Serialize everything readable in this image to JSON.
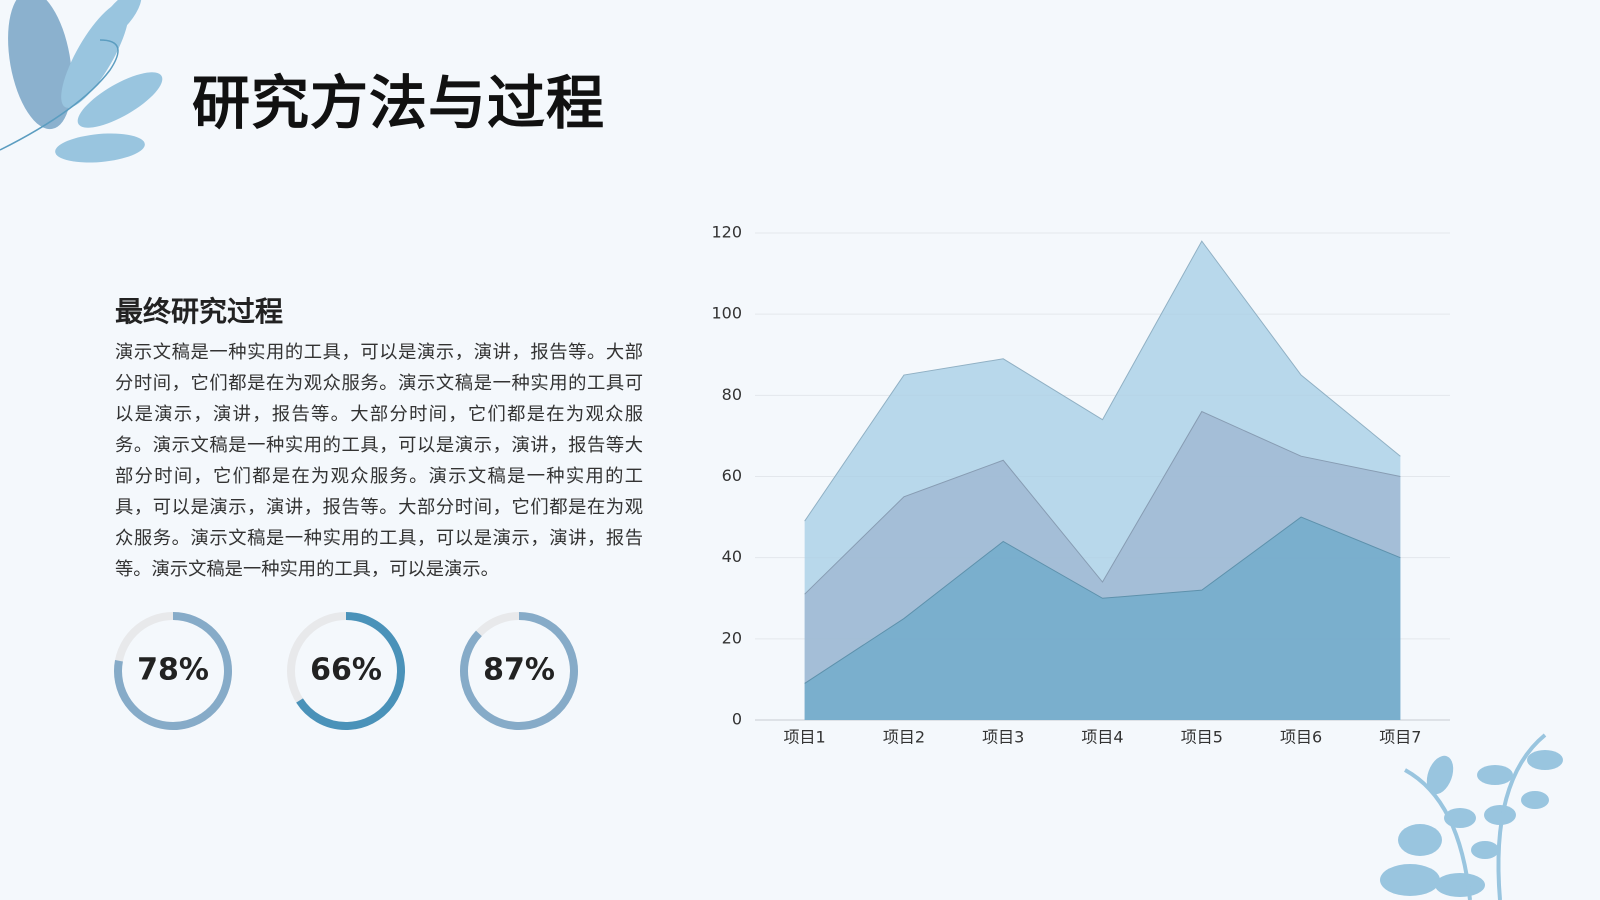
{
  "header": {
    "title": "研究方法与过程"
  },
  "section": {
    "heading": "最终研究过程",
    "body": "演示文稿是一种实用的工具，可以是演示，演讲，报告等。大部分时间，它们都是在为观众服务。演示文稿是一种实用的工具可以是演示，演讲，报告等。大部分时间，它们都是在为观众服务。演示文稿是一种实用的工具，可以是演示，演讲，报告等大部分时间，它们都是在为观众服务。演示文稿是一种实用的工具，可以是演示，演讲，报告等。大部分时间，它们都是在为观众服务。演示文稿是一种实用的工具，可以是演示，演讲，报告等。演示文稿是一种实用的工具，可以是演示。"
  },
  "progress": {
    "values": [
      78,
      66,
      87
    ],
    "value_labels": [
      "78%",
      "66%",
      "87%"
    ],
    "colors": [
      "#86abc8",
      "#4a92b9",
      "#86abc8"
    ]
  },
  "chart_data": {
    "type": "area",
    "categories": [
      "项目1",
      "项目2",
      "项目3",
      "项目4",
      "项目5",
      "项目6",
      "项目7"
    ],
    "series": [
      {
        "color": "#a9cfe6",
        "values": [
          49,
          85,
          89,
          74,
          118,
          85,
          65
        ]
      },
      {
        "color": "#9fb8d2",
        "values": [
          31,
          55,
          64,
          34,
          76,
          65,
          60
        ]
      },
      {
        "color": "#6fabca",
        "values": [
          9,
          25,
          44,
          30,
          32,
          50,
          40
        ]
      }
    ],
    "ylim": [
      0,
      120
    ],
    "yticks": [
      0,
      20,
      40,
      60,
      80,
      100,
      120
    ],
    "grid": true
  }
}
